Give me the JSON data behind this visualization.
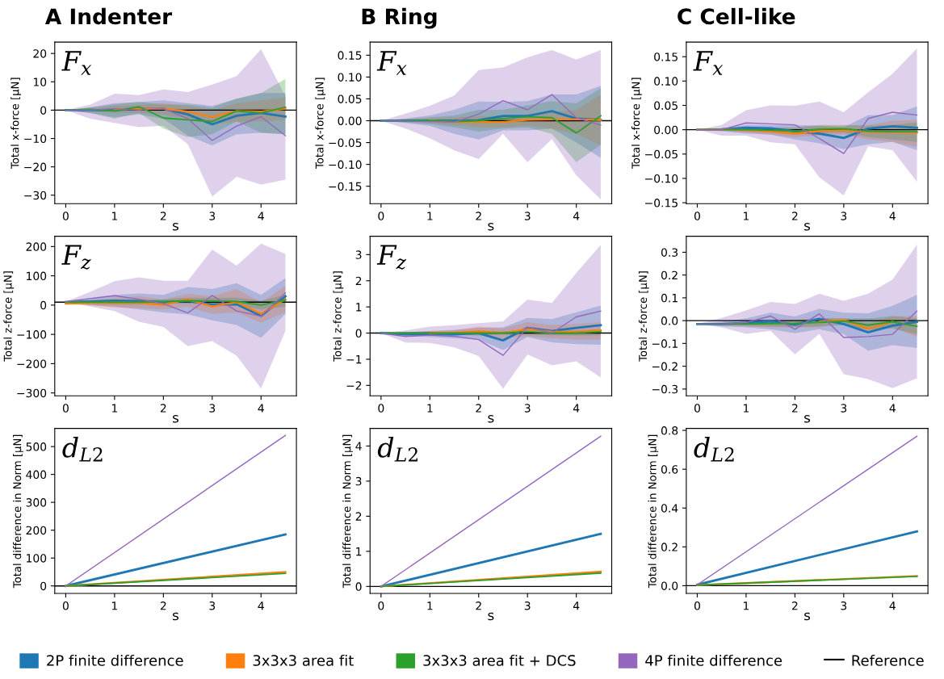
{
  "chart_data": [
    {
      "type": "line",
      "title": "A Indenter",
      "xlabel": "s",
      "ylabel": "Total x-force [μN]",
      "annotations": [
        "F$_{x}$"
      ],
      "legend": "bottom",
      "x": [
        0,
        0.5,
        1,
        1.5,
        2,
        2.5,
        3,
        3.5,
        4,
        4.5
      ],
      "xlim": [
        -0.225,
        4.725
      ],
      "xticks": [
        0,
        1,
        2,
        3,
        4
      ],
      "ylim": [
        -33,
        24
      ],
      "yticks": [
        {
          "value": -30,
          "label": "−30"
        },
        {
          "value": -20,
          "label": "−20"
        },
        {
          "value": -10,
          "label": "−10"
        },
        0,
        10,
        20
      ],
      "ref_lines": [
        {
          "axis": "y",
          "value": 0,
          "label": "Reference",
          "color": "#000000"
        }
      ],
      "series": [
        {
          "name": "2P finite difference",
          "color": "#1f77b4",
          "values": [
            0,
            0,
            0,
            0.5,
            0.5,
            -1.5,
            -5,
            -2,
            -1,
            -2.3
          ],
          "lower": [
            0,
            -1,
            -2.5,
            -1.5,
            -3,
            -9,
            -12.5,
            -8.5,
            -8,
            -8.5
          ],
          "upper": [
            0,
            1,
            2.5,
            2.8,
            3.5,
            2.5,
            1.5,
            4,
            6,
            6
          ]
        },
        {
          "name": "3x3x3 area fit",
          "color": "#ff7f0e",
          "values": [
            null,
            null,
            0.3,
            0.5,
            0.5,
            -0.5,
            -2.5,
            -0.3,
            -0.5,
            0.5
          ],
          "lower": [
            0,
            -0.5,
            -1,
            -1,
            -1.5,
            -3,
            -5,
            -4,
            -4,
            -3.5
          ],
          "upper": [
            0,
            0.5,
            1.5,
            1.8,
            2.5,
            1.5,
            0,
            2.5,
            3.5,
            4.5
          ]
        },
        {
          "name": "3x3x3 area fit + DCS",
          "color": "#2ca02c",
          "values": [
            0,
            0.3,
            -0.3,
            1.2,
            -2.8,
            -3.4,
            -4,
            -0.3,
            -1,
            1
          ],
          "lower": [
            0,
            -1,
            -3,
            -1,
            -6.5,
            -9.5,
            -8.5,
            -4,
            -8,
            -8.5
          ],
          "upper": [
            0,
            1,
            2,
            3,
            2,
            2,
            1,
            4,
            6,
            11
          ]
        },
        {
          "name": "4P finite difference",
          "color": "#9467bd",
          "values": [
            0,
            0,
            0.5,
            0,
            0.5,
            -3,
            -10.7,
            -5.6,
            -2.3,
            -9
          ],
          "lower": [
            0,
            -3,
            -4.5,
            -6,
            -5.5,
            -12,
            -30.5,
            -23.5,
            -26.3,
            -24.5
          ],
          "upper": [
            0,
            2,
            5.8,
            5.3,
            7.3,
            6.4,
            9,
            12,
            21.5,
            5
          ]
        }
      ]
    },
    {
      "type": "line",
      "title": "B Ring",
      "xlabel": "s",
      "ylabel": "Total x-force [μN]",
      "annotations": [
        "F$_{x}$"
      ],
      "x": [
        0,
        0.5,
        1,
        1.5,
        2,
        2.5,
        3,
        3.5,
        4,
        4.5
      ],
      "xlim": [
        -0.225,
        4.725
      ],
      "xticks": [
        0,
        1,
        2,
        3,
        4
      ],
      "ylim": [
        -0.19,
        0.18
      ],
      "yticks": [
        {
          "value": -0.15,
          "label": "−0.15"
        },
        {
          "value": -0.1,
          "label": "−0.10"
        },
        {
          "value": -0.05,
          "label": "−0.05"
        },
        {
          "value": 0,
          "label": "0.00"
        },
        0.05,
        {
          "value": 0.1,
          "label": "0.10"
        },
        0.15
      ],
      "ref_lines": [
        {
          "axis": "y",
          "value": 0,
          "color": "#000000"
        }
      ],
      "series": [
        {
          "color": "#1f77b4",
          "values": [
            0,
            0,
            0,
            0,
            0.001,
            0.011,
            0.011,
            0.022,
            0.005,
            0.002
          ],
          "lower": [
            0,
            -0.005,
            -0.012,
            -0.03,
            -0.043,
            -0.022,
            -0.022,
            -0.018,
            -0.05,
            -0.085
          ],
          "upper": [
            0,
            0.005,
            0.012,
            0.025,
            0.044,
            0.043,
            0.045,
            0.06,
            0.06,
            0.08
          ]
        },
        {
          "color": "#ff7f0e",
          "values": [
            null,
            null,
            0,
            -0.003,
            -0.003,
            -0.003,
            0.002,
            0.003,
            0.003,
            0.002
          ],
          "lower": [
            0,
            -0.002,
            -0.005,
            -0.01,
            -0.015,
            -0.015,
            -0.012,
            -0.018,
            -0.03,
            -0.057
          ],
          "upper": [
            0,
            0.002,
            0.005,
            0.008,
            0.01,
            0.01,
            0.015,
            0.02,
            0.025,
            0.06
          ]
        },
        {
          "color": "#2ca02c",
          "values": [
            0,
            0,
            0,
            -0.002,
            0,
            0.005,
            0.009,
            0.007,
            -0.028,
            0.011
          ],
          "lower": [
            0,
            -0.004,
            -0.008,
            -0.015,
            -0.025,
            -0.018,
            -0.015,
            -0.03,
            -0.095,
            -0.055
          ],
          "upper": [
            0,
            0.004,
            0.008,
            0.012,
            0.025,
            0.025,
            0.035,
            0.045,
            0.04,
            0.075
          ]
        },
        {
          "color": "#9467bd",
          "values": [
            0,
            -0.001,
            -0.002,
            -0.003,
            0.015,
            0.046,
            0.025,
            0.06,
            0.007,
            -0.01
          ],
          "lower": [
            0,
            -0.018,
            -0.04,
            -0.068,
            -0.088,
            -0.03,
            -0.095,
            -0.042,
            -0.125,
            -0.18
          ],
          "upper": [
            0,
            0.016,
            0.034,
            0.058,
            0.116,
            0.122,
            0.145,
            0.162,
            0.14,
            0.162
          ]
        }
      ]
    },
    {
      "type": "line",
      "title": "C Cell-like",
      "xlabel": "s",
      "ylabel": "Total x-force [μN]",
      "annotations": [
        "F$_{x}$"
      ],
      "x": [
        0,
        0.5,
        1,
        1.5,
        2,
        2.5,
        3,
        3.5,
        4,
        4.5
      ],
      "xlim": [
        -0.225,
        4.725
      ],
      "xticks": [
        0,
        1,
        2,
        3,
        4
      ],
      "ylim": [
        -0.152,
        0.18
      ],
      "yticks": [
        {
          "value": -0.15,
          "label": "−0.15"
        },
        {
          "value": -0.1,
          "label": "−0.10"
        },
        {
          "value": -0.05,
          "label": "−0.05"
        },
        {
          "value": 0,
          "label": "0.00"
        },
        0.05,
        {
          "value": 0.1,
          "label": "0.10"
        },
        0.15
      ],
      "ref_lines": [
        {
          "axis": "y",
          "value": 0,
          "color": "#000000"
        }
      ],
      "series": [
        {
          "color": "#1f77b4",
          "values": [
            0,
            0.001,
            0.004,
            0.003,
            -0.003,
            -0.008,
            -0.017,
            0.002,
            0.007,
            0.004
          ],
          "lower": [
            0,
            -0.003,
            -0.008,
            -0.01,
            -0.02,
            -0.028,
            -0.04,
            -0.03,
            -0.025,
            -0.042
          ],
          "upper": [
            0,
            0.003,
            0.01,
            0.01,
            0.01,
            0.008,
            0.005,
            0.03,
            0.03,
            0.048
          ]
        },
        {
          "color": "#ff7f0e",
          "values": [
            0,
            0,
            -0.001,
            -0.003,
            -0.008,
            -0.003,
            -0.001,
            -0.005,
            -0.005,
            -0.006
          ],
          "lower": [
            0,
            -0.002,
            -0.005,
            -0.01,
            -0.015,
            -0.012,
            -0.01,
            -0.02,
            -0.025,
            -0.035
          ],
          "upper": [
            0,
            0.002,
            0.004,
            0.005,
            0.003,
            0.008,
            0.008,
            0.01,
            0.018,
            0.02
          ]
        },
        {
          "color": "#2ca02c",
          "values": [
            0,
            0,
            0,
            -0.001,
            -0.003,
            0.001,
            0.002,
            -0.003,
            -0.004,
            -0.004
          ],
          "lower": [
            0,
            -0.002,
            -0.004,
            -0.006,
            -0.01,
            -0.007,
            -0.006,
            -0.015,
            -0.02,
            -0.025
          ],
          "upper": [
            0,
            0.002,
            0.004,
            0.005,
            0.005,
            0.01,
            0.01,
            0.008,
            0.01,
            0.015
          ]
        },
        {
          "color": "#9467bd",
          "values": [
            0,
            0,
            0.014,
            0.012,
            0.01,
            -0.018,
            -0.049,
            0.023,
            0.036,
            0.03
          ],
          "lower": [
            0,
            -0.012,
            -0.012,
            -0.026,
            -0.03,
            -0.098,
            -0.135,
            -0.034,
            -0.042,
            -0.107
          ],
          "upper": [
            0,
            0.01,
            0.04,
            0.05,
            0.049,
            0.058,
            0.036,
            0.077,
            0.115,
            0.167
          ]
        }
      ]
    },
    {
      "type": "line",
      "xlabel": "s",
      "ylabel": "Total z-force [μN]",
      "annotations": [
        "F$_{z}$"
      ],
      "x": [
        0,
        0.5,
        1,
        1.5,
        2,
        2.5,
        3,
        3.5,
        4,
        4.5
      ],
      "xlim": [
        -0.225,
        4.725
      ],
      "xticks": [
        0,
        1,
        2,
        3,
        4
      ],
      "ylim": [
        -310,
        235
      ],
      "yticks": [
        {
          "value": -300,
          "label": "−300"
        },
        {
          "value": -200,
          "label": "−200"
        },
        {
          "value": -100,
          "label": "−100"
        },
        0,
        100,
        200
      ],
      "ref_lines": [
        {
          "axis": "y",
          "value": 10,
          "color": "#000000"
        }
      ],
      "series": [
        {
          "color": "#1f77b4",
          "values": [
            10,
            12,
            15,
            14,
            10,
            14,
            2,
            3,
            -37,
            30
          ],
          "lower": [
            10,
            0,
            -5,
            -15,
            -25,
            -32,
            -52,
            -68,
            -112,
            -30
          ],
          "upper": [
            12,
            25,
            35,
            40,
            35,
            62,
            55,
            75,
            35,
            92
          ]
        },
        {
          "color": "#ff7f0e",
          "values": [
            5,
            7,
            8,
            7,
            1,
            20,
            -5,
            10,
            -30,
            20
          ],
          "lower": [
            3,
            0,
            -8,
            -10,
            -15,
            -5,
            -30,
            -25,
            -60,
            -25
          ],
          "upper": [
            8,
            15,
            25,
            30,
            20,
            38,
            30,
            55,
            10,
            65
          ]
        },
        {
          "color": "#2ca02c",
          "values": [
            10,
            10,
            10,
            10,
            12,
            15,
            14,
            12,
            0,
            17
          ],
          "lower": [
            8,
            5,
            2,
            2,
            5,
            5,
            5,
            0,
            -15,
            -5
          ],
          "upper": [
            12,
            15,
            18,
            18,
            20,
            25,
            25,
            25,
            15,
            35
          ]
        },
        {
          "color": "#9467bd",
          "values": [
            12,
            22,
            32,
            20,
            5,
            -27,
            33,
            -20,
            -38,
            42
          ],
          "lower": [
            12,
            -5,
            -20,
            -57,
            -75,
            -140,
            -123,
            -173,
            -285,
            -88
          ],
          "upper": [
            12,
            45,
            82,
            95,
            83,
            83,
            190,
            135,
            210,
            175
          ]
        }
      ]
    },
    {
      "type": "line",
      "xlabel": "s",
      "ylabel": "Total z-force [μN]",
      "annotations": [
        "F$_{z}$"
      ],
      "x": [
        0,
        0.5,
        1,
        1.5,
        2,
        2.5,
        3,
        3.5,
        4,
        4.5
      ],
      "xlim": [
        -0.225,
        4.725
      ],
      "xticks": [
        0,
        1,
        2,
        3,
        4
      ],
      "ylim": [
        -2.4,
        3.7
      ],
      "yticks": [
        {
          "value": -2,
          "label": "−2"
        },
        {
          "value": -1,
          "label": "−1"
        },
        0,
        1,
        2,
        3
      ],
      "ref_lines": [
        {
          "axis": "y",
          "value": 0,
          "color": "#000000"
        }
      ],
      "series": [
        {
          "color": "#1f77b4",
          "values": [
            0,
            -0.05,
            -0.05,
            -0.05,
            0,
            -0.28,
            0.2,
            0.08,
            0.2,
            0.3
          ],
          "lower": [
            0,
            -0.1,
            -0.15,
            -0.2,
            -0.25,
            -0.65,
            -0.15,
            -0.35,
            -0.42,
            -0.45
          ],
          "upper": [
            0,
            0.03,
            0.08,
            0.12,
            0.2,
            0.22,
            0.58,
            0.53,
            0.8,
            1.05
          ]
        },
        {
          "color": "#ff7f0e",
          "values": [
            null,
            null,
            0,
            0.02,
            0.07,
            0,
            0.15,
            0.05,
            0.05,
            0.1
          ],
          "lower": [
            0,
            -0.03,
            -0.05,
            -0.08,
            -0.1,
            -0.2,
            -0.12,
            -0.2,
            -0.25,
            -0.25
          ],
          "upper": [
            0,
            0.03,
            0.08,
            0.12,
            0.25,
            0.18,
            0.42,
            0.3,
            0.35,
            0.42
          ]
        },
        {
          "color": "#2ca02c",
          "values": [
            0,
            0,
            0,
            0,
            0,
            0,
            0.05,
            0,
            0,
            0.05
          ],
          "lower": [
            0,
            -0.02,
            -0.04,
            -0.05,
            -0.08,
            -0.06,
            -0.06,
            -0.08,
            -0.1,
            -0.08
          ],
          "upper": [
            0,
            0.02,
            0.04,
            0.05,
            0.08,
            0.06,
            0.12,
            0.1,
            0.1,
            0.15
          ]
        },
        {
          "color": "#9467bd",
          "values": [
            0,
            -0.13,
            -0.08,
            -0.12,
            -0.25,
            -0.85,
            0.23,
            0,
            0.62,
            0.84
          ],
          "lower": [
            0,
            -0.36,
            -0.38,
            -0.55,
            -0.88,
            -2.13,
            -0.82,
            -1.23,
            -1.08,
            -1.7
          ],
          "upper": [
            0,
            0.1,
            0.25,
            0.3,
            0.38,
            0.45,
            1.28,
            1.15,
            2.3,
            3.37
          ]
        }
      ]
    },
    {
      "type": "line",
      "xlabel": "s",
      "ylabel": "Total z-force [μN]",
      "x": [
        0,
        0.5,
        1,
        1.5,
        2,
        2.5,
        3,
        3.5,
        4,
        4.5
      ],
      "xlim": [
        -0.225,
        4.725
      ],
      "xticks": [
        0,
        1,
        2,
        3,
        4
      ],
      "ylim": [
        -0.33,
        0.37
      ],
      "yticks": [
        {
          "value": -0.3,
          "label": "−0.3"
        },
        {
          "value": -0.2,
          "label": "−0.2"
        },
        {
          "value": -0.1,
          "label": "−0.1"
        },
        {
          "value": 0,
          "label": "0.0"
        },
        0.1,
        0.2,
        0.3
      ],
      "ref_lines": [
        {
          "axis": "y",
          "value": 0,
          "color": "#000000"
        }
      ],
      "series": [
        {
          "color": "#1f77b4",
          "values": [
            -0.015,
            -0.015,
            -0.01,
            -0.003,
            -0.018,
            0.008,
            -0.015,
            -0.051,
            -0.022,
            -0.005
          ],
          "lower": [
            -0.015,
            -0.025,
            -0.03,
            -0.038,
            -0.055,
            -0.038,
            -0.06,
            -0.132,
            -0.108,
            -0.12
          ],
          "upper": [
            -0.015,
            -0.005,
            0.01,
            0.035,
            0.018,
            0.052,
            0.035,
            0.032,
            0.065,
            0.113
          ]
        },
        {
          "color": "#ff7f0e",
          "values": [
            null,
            null,
            null,
            null,
            null,
            -0.005,
            0.003,
            -0.035,
            -0.005,
            null
          ],
          "lower": [
            -0.015,
            -0.02,
            -0.025,
            -0.03,
            -0.03,
            -0.03,
            -0.01,
            -0.05,
            -0.03,
            -0.07
          ],
          "upper": [
            -0.015,
            -0.01,
            -0.005,
            0.005,
            0.005,
            0.012,
            0.01,
            -0.01,
            0.02,
            0.02
          ]
        },
        {
          "color": "#2ca02c",
          "values": [
            -0.015,
            -0.015,
            -0.015,
            -0.013,
            -0.012,
            -0.008,
            -0.002,
            -0.02,
            -0.005,
            -0.025
          ],
          "lower": [
            -0.015,
            -0.02,
            -0.022,
            -0.025,
            -0.028,
            -0.025,
            -0.02,
            -0.04,
            -0.035,
            -0.06
          ],
          "upper": [
            -0.015,
            -0.01,
            -0.008,
            -0.003,
            -0.002,
            0.01,
            0.01,
            0.01,
            0.02,
            0.01
          ]
        },
        {
          "color": "#9467bd",
          "values": [
            -0.015,
            -0.016,
            -0.008,
            0.02,
            -0.038,
            0.03,
            -0.074,
            -0.07,
            -0.06,
            0.042
          ],
          "lower": [
            -0.015,
            -0.03,
            -0.058,
            -0.045,
            -0.148,
            -0.058,
            -0.235,
            -0.256,
            -0.296,
            -0.253
          ],
          "upper": [
            -0.015,
            0.012,
            0.045,
            0.082,
            0.073,
            0.118,
            0.087,
            0.118,
            0.18,
            0.333
          ]
        }
      ]
    },
    {
      "type": "line",
      "xlabel": "s",
      "ylabel": "Total difference in Norm [μN]",
      "annotations": [
        "d$_{L2}$"
      ],
      "x": [
        0,
        4.5
      ],
      "xlim": [
        -0.225,
        4.725
      ],
      "xticks": [
        0,
        1,
        2,
        3,
        4
      ],
      "ylim": [
        -27,
        565
      ],
      "yticks": [
        0,
        100,
        200,
        300,
        400,
        500
      ],
      "ref_lines": [
        {
          "axis": "y",
          "value": 0,
          "color": "#000000"
        }
      ],
      "series": [
        {
          "color": "#1f77b4",
          "values": [
            0,
            185
          ]
        },
        {
          "color": "#ff7f0e",
          "values": [
            0,
            50
          ]
        },
        {
          "color": "#2ca02c",
          "values": [
            0,
            45
          ]
        },
        {
          "color": "#9467bd",
          "values": [
            0,
            540
          ]
        }
      ]
    },
    {
      "type": "line",
      "xlabel": "s",
      "ylabel": "Total difference in Norm [μN]",
      "annotations": [
        "d$_{L2}$"
      ],
      "x": [
        0,
        4.5
      ],
      "xlim": [
        -0.225,
        4.725
      ],
      "xticks": [
        0,
        1,
        2,
        3,
        4
      ],
      "ylim": [
        -0.2,
        4.5
      ],
      "yticks": [
        0,
        1,
        2,
        3,
        4
      ],
      "ref_lines": [
        {
          "axis": "y",
          "value": 0,
          "color": "#000000"
        }
      ],
      "series": [
        {
          "color": "#1f77b4",
          "values": [
            0,
            1.5
          ]
        },
        {
          "color": "#ff7f0e",
          "values": [
            0,
            0.42
          ]
        },
        {
          "color": "#2ca02c",
          "values": [
            0,
            0.38
          ]
        },
        {
          "color": "#9467bd",
          "values": [
            0,
            4.28
          ]
        }
      ]
    },
    {
      "type": "line",
      "xlabel": "s",
      "ylabel": "Total difference in Norm [μN]",
      "annotations": [
        "d$_{L2}$"
      ],
      "x": [
        0,
        4.5
      ],
      "xlim": [
        -0.225,
        4.725
      ],
      "xticks": [
        0,
        1,
        2,
        3,
        4
      ],
      "ylim": [
        -0.04,
        0.81
      ],
      "yticks": [
        {
          "value": 0,
          "label": "0.0"
        },
        0.2,
        0.4,
        0.6,
        0.8
      ],
      "ref_lines": [
        {
          "axis": "y",
          "value": 0,
          "color": "#000000"
        }
      ],
      "series": [
        {
          "color": "#1f77b4",
          "values": [
            0.005,
            0.28
          ]
        },
        {
          "color": "#ff7f0e",
          "values": [
            0.003,
            0.05
          ]
        },
        {
          "color": "#2ca02c",
          "values": [
            0.003,
            0.048
          ]
        },
        {
          "color": "#9467bd",
          "values": [
            0.005,
            0.77
          ]
        }
      ]
    }
  ]
}
